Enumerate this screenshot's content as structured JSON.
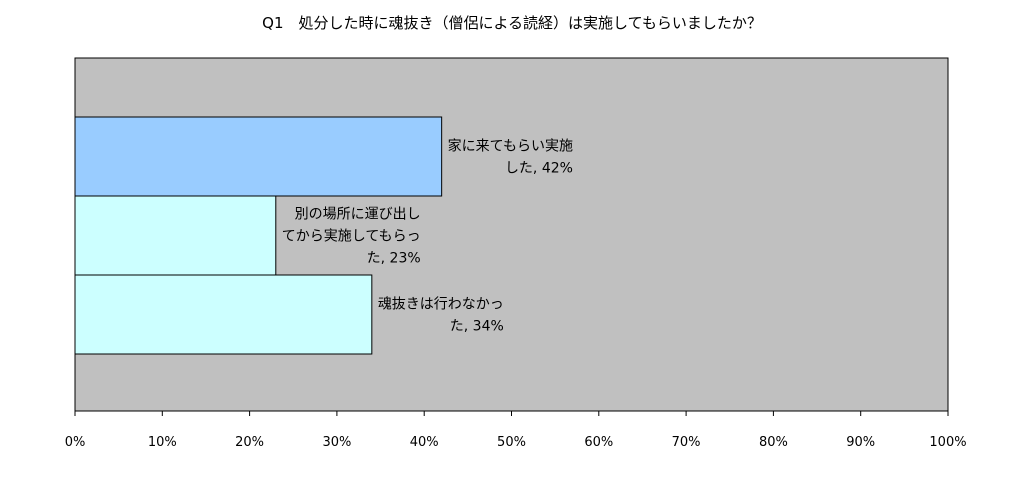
{
  "chart_data": {
    "type": "bar",
    "orientation": "horizontal",
    "title": "Q1　処分した時に魂抜き（僧侶による読経）は実施してもらいましたか？",
    "xlabel": "",
    "ylabel": "",
    "xlim": [
      0,
      100
    ],
    "x_tick_labels": [
      "0%",
      "10%",
      "20%",
      "30%",
      "40%",
      "50%",
      "60%",
      "70%",
      "80%",
      "90%",
      "100%"
    ],
    "grid": false,
    "legend": "none",
    "plot_background": "#c0c0c0",
    "categories": [
      "家に来てもらい実施した",
      "別の場所に運び出してから実施してもらった",
      "魂抜きは行わなかった"
    ],
    "values": [
      42,
      23,
      34
    ],
    "bar_colors": [
      "#99ccff",
      "#ccffff",
      "#ccffff"
    ],
    "data_labels": [
      [
        "家に来てもらい実施",
        "した, 42%"
      ],
      [
        "別の場所に運び出し",
        "てから実施してもらっ",
        "た, 23%"
      ],
      [
        "魂抜きは行わなかっ",
        "た, 34%"
      ]
    ]
  }
}
